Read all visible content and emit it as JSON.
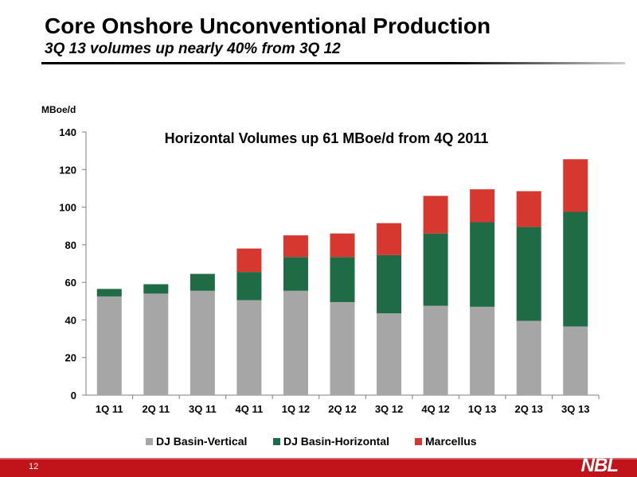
{
  "header": {
    "title": "Core Onshore Unconventional Production",
    "subtitle": "3Q 13 volumes up nearly 40% from 3Q 12"
  },
  "footer": {
    "page_number": "12",
    "logo_text": "NBL"
  },
  "chart_data": {
    "type": "bar",
    "stacked": true,
    "title": "Horizontal Volumes up 61 MBoe/d from 4Q 2011",
    "xlabel": "",
    "ylabel": "MBoe/d",
    "categories": [
      "1Q 11",
      "2Q 11",
      "3Q 11",
      "4Q 11",
      "1Q 12",
      "2Q 12",
      "3Q 12",
      "4Q 12",
      "1Q 13",
      "2Q 13",
      "3Q 13"
    ],
    "series": [
      {
        "name": "DJ Basin-Vertical",
        "color": "#a6a6a6",
        "values": [
          52.5,
          54,
          55.5,
          50.5,
          55.5,
          49.5,
          43.5,
          47.5,
          47,
          39.5,
          36.5
        ]
      },
      {
        "name": "DJ Basin-Horizontal",
        "color": "#1f6b46",
        "values": [
          4,
          5,
          9,
          15,
          18,
          24,
          31,
          38.5,
          45,
          50,
          61
        ]
      },
      {
        "name": "Marcellus",
        "color": "#d6382f",
        "values": [
          0,
          0,
          0,
          12.5,
          11.5,
          12.5,
          17,
          20,
          17.5,
          19,
          28
        ]
      }
    ],
    "ylim": [
      0,
      140
    ],
    "yticks": [
      0,
      20,
      40,
      60,
      80,
      100,
      120,
      140
    ],
    "grid": false,
    "legend_position": "bottom"
  }
}
